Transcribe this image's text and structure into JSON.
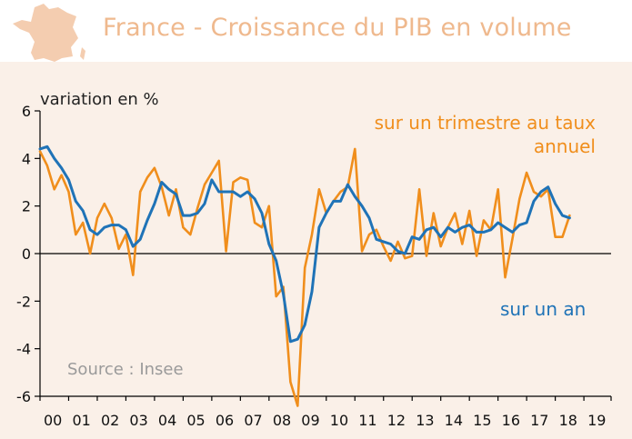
{
  "header": {
    "title": "France - Croissance du PIB en volume",
    "title_color": "#efb98e",
    "icon": "france-map-icon"
  },
  "source": "Source : Insee",
  "chart_data": {
    "type": "line",
    "title": "France - Croissance du PIB en volume",
    "ylabel": "variation en %",
    "xlabel": "",
    "ylim": [
      -6,
      6
    ],
    "yticks": [
      -6,
      -4,
      -2,
      0,
      2,
      4,
      6
    ],
    "xticks": [
      "00",
      "01",
      "02",
      "03",
      "04",
      "05",
      "06",
      "07",
      "08",
      "09",
      "10",
      "11",
      "12",
      "13",
      "14",
      "15",
      "16",
      "17",
      "18",
      "19"
    ],
    "x_unit": "year",
    "x_start": 2000.0,
    "x_step": 0.25,
    "series": [
      {
        "name": "sur un trimestre au taux annuel",
        "color": "#f08e1c",
        "values": [
          4.3,
          3.7,
          2.7,
          3.3,
          2.6,
          0.8,
          1.3,
          0.0,
          1.5,
          2.1,
          1.5,
          0.2,
          0.8,
          -0.9,
          2.6,
          3.2,
          3.6,
          2.8,
          1.6,
          2.7,
          1.1,
          0.8,
          1.9,
          2.9,
          3.4,
          3.9,
          0.1,
          3.0,
          3.2,
          3.1,
          1.3,
          1.1,
          2.0,
          -1.8,
          -1.4,
          -5.4,
          -6.4,
          -0.6,
          0.8,
          2.7,
          1.7,
          2.2,
          2.6,
          2.8,
          4.4,
          0.1,
          0.8,
          1.0,
          0.3,
          -0.3,
          0.5,
          -0.2,
          -0.1,
          2.7,
          -0.1,
          1.7,
          0.3,
          1.1,
          1.7,
          0.4,
          1.8,
          -0.1,
          1.4,
          1.0,
          2.7,
          -1.0,
          0.6,
          2.3,
          3.4,
          2.6,
          2.4,
          2.7,
          0.7,
          0.7,
          1.6
        ]
      },
      {
        "name": "sur un an",
        "color": "#1f73b7",
        "values": [
          4.4,
          4.5,
          4.0,
          3.6,
          3.1,
          2.2,
          1.8,
          1.0,
          0.8,
          1.1,
          1.2,
          1.2,
          1.0,
          0.3,
          0.6,
          1.4,
          2.1,
          3.0,
          2.7,
          2.5,
          1.6,
          1.6,
          1.7,
          2.1,
          3.1,
          2.6,
          2.6,
          2.6,
          2.4,
          2.6,
          2.3,
          1.7,
          0.4,
          -0.3,
          -1.7,
          -3.7,
          -3.6,
          -3.0,
          -1.6,
          1.1,
          1.7,
          2.2,
          2.2,
          2.9,
          2.4,
          2.0,
          1.5,
          0.6,
          0.5,
          0.4,
          0.1,
          0.0,
          0.7,
          0.6,
          1.0,
          1.1,
          0.7,
          1.1,
          0.9,
          1.1,
          1.2,
          0.9,
          0.9,
          1.0,
          1.3,
          1.1,
          0.9,
          1.2,
          1.3,
          2.2,
          2.6,
          2.8,
          2.1,
          1.6,
          1.5
        ]
      }
    ],
    "legend": [
      "sur un trimestre au taux annuel",
      "sur un an"
    ],
    "legend_placement": "inline labels (top-right, bottom-right)",
    "grid": false
  }
}
